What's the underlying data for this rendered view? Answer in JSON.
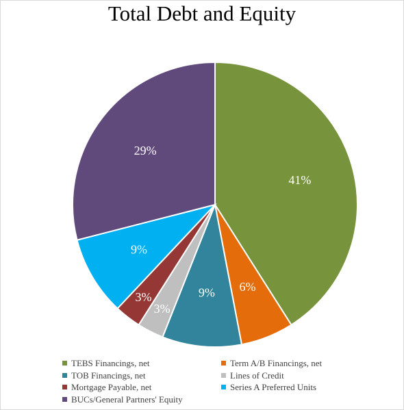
{
  "chart_data": {
    "type": "pie",
    "title": "Total Debt and Equity",
    "categories": [
      "TEBS Financings, net",
      "Term A/B Financings, net",
      "TOB Financings, net",
      "Lines of Credit",
      "Mortgage Payable, net",
      "Series A Preferred Units",
      "BUCs/General Partners' Equity"
    ],
    "values": [
      41,
      6,
      9,
      3,
      3,
      9,
      29
    ],
    "data_labels": [
      "41%",
      "6%",
      "9%",
      "3%",
      "3%",
      "9%",
      "29%"
    ],
    "colors": [
      "#77933c",
      "#e46c0a",
      "#31849b",
      "#bfbfbf",
      "#953735",
      "#00b0f0",
      "#604a7b"
    ],
    "legend_position": "bottom"
  }
}
